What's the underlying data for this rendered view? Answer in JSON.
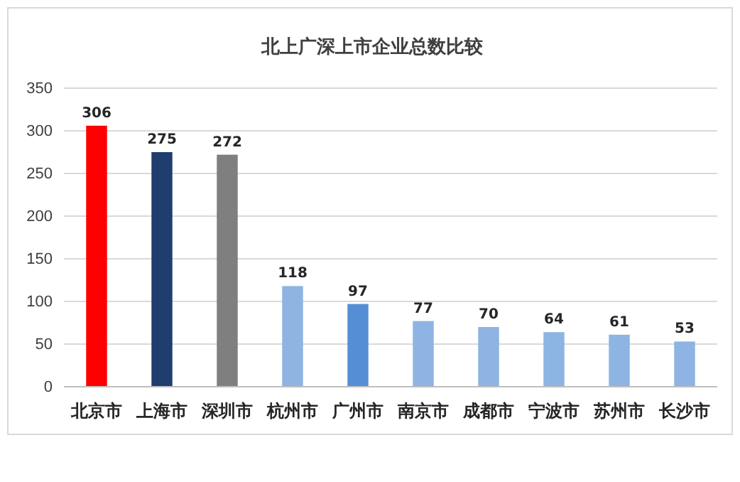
{
  "chart_data": {
    "type": "bar",
    "title": "北上广深上市企业总数比较",
    "categories": [
      "北京市",
      "上海市",
      "深圳市",
      "杭州市",
      "广州市",
      "南京市",
      "成都市",
      "宁波市",
      "苏州市",
      "长沙市"
    ],
    "values": [
      306,
      275,
      272,
      118,
      97,
      77,
      70,
      64,
      61,
      53
    ],
    "colors": [
      "#ff0000",
      "#1f3d6e",
      "#7f7f7f",
      "#8db4e2",
      "#558ed5",
      "#8db4e2",
      "#8db4e2",
      "#8db4e2",
      "#8db4e2",
      "#8db4e2"
    ],
    "ylim": [
      0,
      350
    ],
    "yticks": [
      0,
      50,
      100,
      150,
      200,
      250,
      300,
      350
    ],
    "grid": "y",
    "data_labels": true
  }
}
